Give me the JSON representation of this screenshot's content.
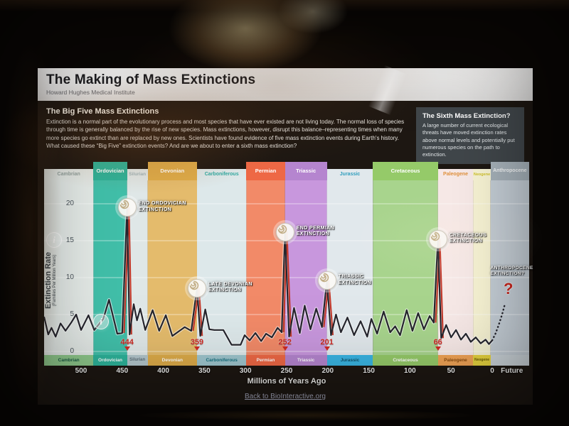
{
  "window": {
    "title": "The Making of Mass Extinctions",
    "subtitle": "Howard Hughes Medical Institute"
  },
  "intro": {
    "heading": "The Big Five Mass Extinctions",
    "body": "Extinction is a normal part of the evolutionary process and most species that have ever existed are not living today. The normal loss of species through time is generally balanced by the rise of new species. Mass extinctions, however, disrupt this balance–representing times when many more species go extinct than are replaced by new ones. Scientists have found evidence of five mass extinction events during Earth's history. What caused these “Big Five” extinction events? And are we about to enter a sixth mass extinction?"
  },
  "sixth_box": {
    "heading": "The Sixth Mass Extinction?",
    "body": "A large number of current ecological threats have moved extinction rates above normal levels and potentially put numerous species on the path to extinction."
  },
  "footer": {
    "link_label": "Back to BioInteractive.org"
  },
  "chart_data": {
    "type": "line",
    "title": "",
    "xlabel": "Millions of Years Ago",
    "ylabel": "Extinction Rate",
    "ylabel_sub": "(Families Per Million Years)",
    "axis": {
      "ma_max": 545,
      "ma_min": -45,
      "ylim": [
        0,
        22
      ],
      "y_ticks": [
        0,
        5,
        10,
        15,
        20
      ],
      "x_ticks": [
        500,
        450,
        400,
        350,
        300,
        250,
        200,
        150,
        100,
        50,
        0
      ],
      "future_label": "Future",
      "future_ma": -24,
      "grid": true
    },
    "colors": {
      "line": "#26262e",
      "spike": "#c23a2c",
      "event_number": "#cf2b25"
    },
    "periods": [
      {
        "name": "Cambrian",
        "from": 545,
        "to": 485,
        "band": "#e4eae7",
        "header_style": "text",
        "header_color": "#93a29f",
        "header_bg": "#e4eae7",
        "header_fs": 7,
        "bottom_bg": "#8fc98c",
        "bottom_color": "#1e5c46",
        "bottom_label": "Cambrian",
        "bottom_fs": 6.5
      },
      {
        "name": "Ordovician",
        "from": 485,
        "to": 444,
        "band": "#41bfa9",
        "header_style": "raised",
        "header_color": "#ffffff",
        "header_bg": "#2db39a",
        "header_fs": 7.5,
        "bottom_bg": "#2db39a",
        "bottom_color": "#ffffff",
        "bottom_label": "Ordovician",
        "bottom_fs": 6.5
      },
      {
        "name": "Silurian",
        "from": 444,
        "to": 419,
        "band": "#dfe7e7",
        "header_style": "text",
        "header_color": "#9fb3b8",
        "header_bg": "#dfe7e7",
        "header_fs": 6.5,
        "bottom_bg": "#b3c6cc",
        "bottom_color": "#5f7078",
        "bottom_label": "Silurian",
        "bottom_fs": 6
      },
      {
        "name": "Devonian",
        "from": 419,
        "to": 359,
        "band": "#e4bb6c",
        "header_style": "raised",
        "header_color": "#ffffff",
        "header_bg": "#ddab49",
        "header_fs": 7.5,
        "bottom_bg": "#ddab49",
        "bottom_color": "#ffffff",
        "bottom_label": "Devonian",
        "bottom_fs": 6.5
      },
      {
        "name": "Carboniferous",
        "from": 359,
        "to": 299,
        "band": "#dde8ea",
        "header_style": "text",
        "header_color": "#2fa9a2",
        "header_bg": "#dde8ea",
        "header_fs": 7,
        "bottom_bg": "#9fc6ce",
        "bottom_color": "#17707e",
        "bottom_label": "Carboniferous",
        "bottom_fs": 6.5
      },
      {
        "name": "Permian",
        "from": 299,
        "to": 252,
        "band": "#f28a68",
        "header_style": "raised",
        "header_color": "#ffffff",
        "header_bg": "#ee6845",
        "header_fs": 7.5,
        "bottom_bg": "#ee6845",
        "bottom_color": "#ffffff",
        "bottom_label": "Permian",
        "bottom_fs": 6.5
      },
      {
        "name": "Triassic",
        "from": 252,
        "to": 201,
        "band": "#c897dd",
        "header_style": "raised",
        "header_color": "#ffffff",
        "header_bg": "#b585cf",
        "header_fs": 7.5,
        "bottom_bg": "#b585cf",
        "bottom_color": "#ffffff",
        "bottom_label": "Triassic",
        "bottom_fs": 6.5
      },
      {
        "name": "Jurassic",
        "from": 201,
        "to": 145,
        "band": "#e1e8ec",
        "header_style": "text",
        "header_color": "#2f9dbd",
        "header_bg": "#e1e8ec",
        "header_fs": 7,
        "bottom_bg": "#3ab5e3",
        "bottom_color": "#115066",
        "bottom_label": "Jurassic",
        "bottom_fs": 6.5
      },
      {
        "name": "Cretaceous",
        "from": 145,
        "to": 66,
        "band": "#a8d48d",
        "header_style": "raised",
        "header_color": "#ffffff",
        "header_bg": "#95ca69",
        "header_fs": 7.5,
        "bottom_bg": "#95ca69",
        "bottom_color": "#ffffff",
        "bottom_label": "Cretaceous",
        "bottom_fs": 6.5
      },
      {
        "name": "Paleogene",
        "from": 66,
        "to": 23,
        "band": "#f7e9e7",
        "header_style": "text",
        "header_color": "#e0913d",
        "header_bg": "#f7e9e7",
        "header_fs": 7,
        "bottom_bg": "#f0a356",
        "bottom_color": "#8a4d12",
        "bottom_label": "Paleogene",
        "bottom_fs": 6.5
      },
      {
        "name": "Neogene",
        "from": 23,
        "to": 2,
        "band": "#f7f3d3",
        "header_style": "text",
        "header_color": "#cfc02c",
        "header_bg": "#f7f3d3",
        "header_fs": 5.5,
        "bottom_bg": "#e6d33f",
        "bottom_color": "#6e6008",
        "bottom_label": "Neogene",
        "bottom_fs": 5
      },
      {
        "name": "Anthropocene",
        "from": 2,
        "to": -45,
        "band": "#c3ccd4",
        "header_style": "raised",
        "header_color": "#f2f4f5",
        "header_bg": "#a5b0b8",
        "header_fs": 7,
        "bottom_bg": "#ccd4d9",
        "bottom_color": "#ccd4d9",
        "bottom_label": "",
        "bottom_fs": 6.5
      }
    ],
    "line": [
      [
        545,
        4.7
      ],
      [
        540,
        2.3
      ],
      [
        536,
        3.2
      ],
      [
        531,
        2.0
      ],
      [
        525,
        3.8
      ],
      [
        519,
        2.8
      ],
      [
        512,
        3.9
      ],
      [
        506,
        5.0
      ],
      [
        500,
        2.9
      ],
      [
        491,
        4.9
      ],
      [
        484,
        2.9
      ],
      [
        473,
        4.4
      ],
      [
        466,
        7.0
      ],
      [
        456,
        2.4
      ],
      [
        450,
        2.5
      ],
      [
        444,
        19.5
      ],
      [
        441,
        2.3
      ],
      [
        436,
        6.4
      ],
      [
        432,
        4.2
      ],
      [
        428,
        5.8
      ],
      [
        422,
        2.9
      ],
      [
        413,
        5.6
      ],
      [
        405,
        2.8
      ],
      [
        397,
        4.9
      ],
      [
        389,
        2.1
      ],
      [
        374,
        3.3
      ],
      [
        366,
        2.8
      ],
      [
        359,
        8.6
      ],
      [
        355,
        2.1
      ],
      [
        349,
        5.7
      ],
      [
        344,
        3.0
      ],
      [
        338,
        2.9
      ],
      [
        327,
        2.9
      ],
      [
        317,
        0.9
      ],
      [
        306,
        0.9
      ],
      [
        301,
        2.2
      ],
      [
        295,
        1.5
      ],
      [
        288,
        2.5
      ],
      [
        281,
        1.4
      ],
      [
        275,
        2.4
      ],
      [
        268,
        1.9
      ],
      [
        261,
        3.2
      ],
      [
        256,
        2.6
      ],
      [
        252,
        16.2
      ],
      [
        247,
        2.0
      ],
      [
        241,
        5.9
      ],
      [
        234,
        2.5
      ],
      [
        228,
        6.2
      ],
      [
        221,
        3.0
      ],
      [
        214,
        5.8
      ],
      [
        207,
        3.3
      ],
      [
        201,
        9.6
      ],
      [
        196,
        2.2
      ],
      [
        190,
        5.0
      ],
      [
        184,
        2.6
      ],
      [
        176,
        4.6
      ],
      [
        168,
        2.2
      ],
      [
        160,
        4.1
      ],
      [
        152,
        2.0
      ],
      [
        147,
        4.4
      ],
      [
        140,
        2.4
      ],
      [
        132,
        5.4
      ],
      [
        124,
        2.6
      ],
      [
        118,
        3.4
      ],
      [
        112,
        2.2
      ],
      [
        104,
        5.6
      ],
      [
        97,
        2.8
      ],
      [
        90,
        5.2
      ],
      [
        83,
        3.0
      ],
      [
        76,
        4.8
      ],
      [
        71,
        3.9
      ],
      [
        66,
        15.2
      ],
      [
        62,
        1.8
      ],
      [
        56,
        3.6
      ],
      [
        50,
        1.9
      ],
      [
        44,
        2.9
      ],
      [
        38,
        1.6
      ],
      [
        32,
        2.4
      ],
      [
        26,
        1.3
      ],
      [
        20,
        1.9
      ],
      [
        14,
        1.1
      ],
      [
        8,
        1.6
      ],
      [
        4,
        1.0
      ],
      [
        0,
        1.5
      ]
    ],
    "projection": [
      [
        0,
        1.5
      ],
      [
        -4,
        2.4
      ],
      [
        -8,
        3.6
      ],
      [
        -12,
        5.0
      ],
      [
        -15,
        6.2
      ]
    ],
    "events": [
      {
        "name": "end-ordovician",
        "line1": "END ORDOVICIAN",
        "line2": "EXTINCTION",
        "ma": 444,
        "rate": 19.5,
        "age_label": "444",
        "spike": [
          [
            450,
            2.5
          ],
          [
            444,
            19.5
          ],
          [
            441,
            2.3
          ]
        ]
      },
      {
        "name": "late-devonian",
        "line1": "LATE DEVONIAN",
        "line2": "EXTINCTION",
        "ma": 359,
        "rate": 8.6,
        "age_label": "359",
        "spike": [
          [
            366,
            2.8
          ],
          [
            359,
            8.6
          ],
          [
            355,
            2.1
          ]
        ]
      },
      {
        "name": "end-permian",
        "line1": "END PERMIAN",
        "line2": "EXTINCTION",
        "ma": 252,
        "rate": 16.2,
        "age_label": "252",
        "spike": [
          [
            256,
            2.6
          ],
          [
            252,
            16.2
          ],
          [
            247,
            2.0
          ]
        ]
      },
      {
        "name": "triassic",
        "line1": "TRIASSIC",
        "line2": "EXTINCTION",
        "ma": 201,
        "rate": 9.6,
        "age_label": "201",
        "spike": [
          [
            207,
            3.3
          ],
          [
            201,
            9.6
          ],
          [
            196,
            2.2
          ]
        ]
      },
      {
        "name": "cretaceous",
        "line1": "CRETACEOUS",
        "line2": "EXTINCTION",
        "ma": 66,
        "rate": 15.2,
        "age_label": "66",
        "spike": [
          [
            71,
            3.9
          ],
          [
            66,
            15.2
          ],
          [
            62,
            1.8
          ]
        ]
      }
    ],
    "anthropocene": {
      "line1": "ANTHROPOCENE",
      "line2": "EXTINCTION?",
      "question_mark": "?",
      "label_ma": 2,
      "label_rate": 11.6,
      "q_ma": -19,
      "q_rate": 8.4
    },
    "info_icons": [
      {
        "x": 14,
        "y": 84
      },
      {
        "x": 80,
        "y": 199
      }
    ]
  }
}
